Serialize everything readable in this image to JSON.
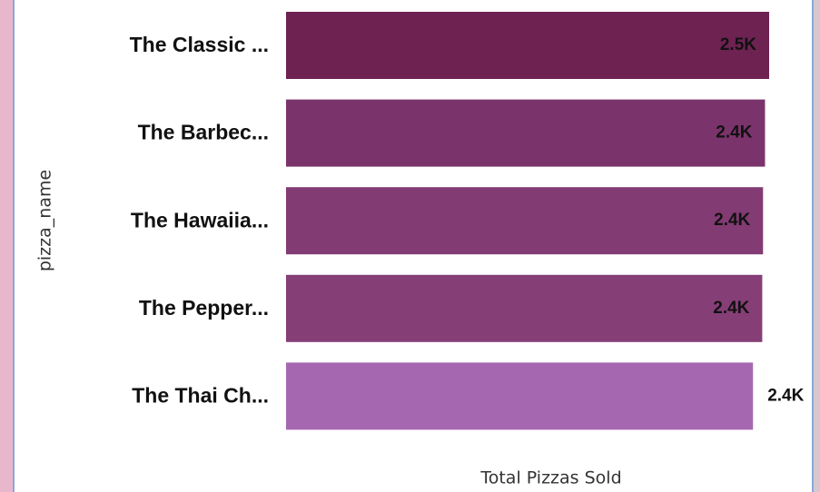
{
  "chart_data": {
    "type": "bar",
    "orientation": "horizontal",
    "categories": [
      "The Classic ...",
      "The Barbec...",
      "The Hawaiia...",
      "The Pepper...",
      "The Thai Ch..."
    ],
    "values": [
      2453,
      2432,
      2422,
      2418,
      2371
    ],
    "value_labels": [
      "2.5K",
      "2.4K",
      "2.4K",
      "2.4K",
      "2.4K"
    ],
    "colors": [
      "#6e2252",
      "#7b346b",
      "#823b73",
      "#863e77",
      "#a667b1"
    ],
    "x_label": "Total Pizzas Sold",
    "y_label": "pizza_name"
  }
}
